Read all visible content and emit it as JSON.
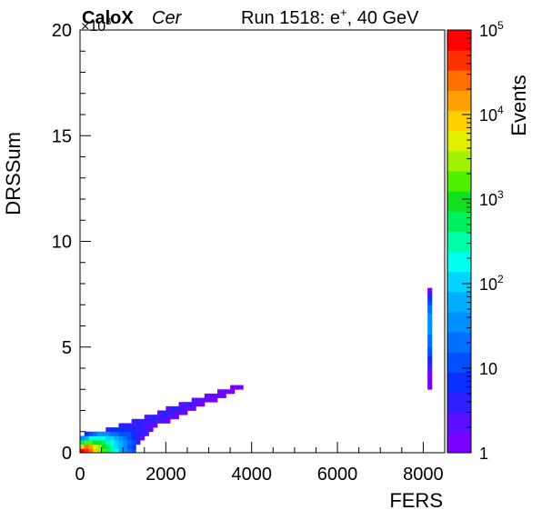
{
  "header": {
    "brand": "CaloX",
    "channel": "Cer",
    "run_label": "Run 1518: e",
    "run_sup": "+",
    "run_energy": ", 40 GeV"
  },
  "chart_data": {
    "type": "heatmap",
    "xlabel": "FERS",
    "ylabel": "DRSSum",
    "y_multiplier_base": "×10",
    "y_multiplier_exp": "3",
    "xlim": [
      0,
      8500
    ],
    "ylim": [
      0,
      20000
    ],
    "x_ticks": [
      {
        "value": 0,
        "label": "0"
      },
      {
        "value": 2000,
        "label": "2000"
      },
      {
        "value": 4000,
        "label": "4000"
      },
      {
        "value": 6000,
        "label": "6000"
      },
      {
        "value": 8000,
        "label": "8000"
      }
    ],
    "y_ticks": [
      {
        "value": 0,
        "label": "0"
      },
      {
        "value": 5000,
        "label": "5"
      },
      {
        "value": 10000,
        "label": "10"
      },
      {
        "value": 15000,
        "label": "15"
      },
      {
        "value": 20000,
        "label": "20"
      }
    ],
    "colorbar": {
      "label": "Events",
      "scale": "log",
      "range": [
        1,
        100000
      ],
      "ticks": [
        {
          "value": 1,
          "base": "1",
          "exp": ""
        },
        {
          "value": 10,
          "base": "10",
          "exp": ""
        },
        {
          "value": 100,
          "base": "10",
          "exp": "2"
        },
        {
          "value": 1000,
          "base": "10",
          "exp": "3"
        },
        {
          "value": 10000,
          "base": "10",
          "exp": "4"
        },
        {
          "value": 100000,
          "base": "10",
          "exp": "5"
        }
      ],
      "palette": [
        "#7b00ff",
        "#5a10ff",
        "#3020ff",
        "#0a30ff",
        "#0050ff",
        "#0070ff",
        "#0090ff",
        "#00b0ff",
        "#00d4ff",
        "#00ffee",
        "#00ffaa",
        "#00f060",
        "#10e020",
        "#50f000",
        "#a0f000",
        "#e0f000",
        "#ffd000",
        "#ffa000",
        "#ff7000",
        "#ff3000",
        "#ff0000"
      ]
    },
    "bins": {
      "x_width": 100,
      "y_width": 200,
      "cells": [
        [
          0,
          0,
          60000
        ],
        [
          100,
          0,
          40000
        ],
        [
          200,
          0,
          20000
        ],
        [
          300,
          0,
          8000
        ],
        [
          400,
          0,
          3000
        ],
        [
          500,
          0,
          1500
        ],
        [
          600,
          0,
          600
        ],
        [
          700,
          0,
          300
        ],
        [
          800,
          0,
          150
        ],
        [
          900,
          0,
          80
        ],
        [
          1000,
          0,
          40
        ],
        [
          1100,
          0,
          20
        ],
        [
          1200,
          0,
          10
        ],
        [
          0,
          200,
          8000
        ],
        [
          100,
          200,
          20000
        ],
        [
          200,
          200,
          15000
        ],
        [
          300,
          200,
          6000
        ],
        [
          400,
          200,
          2500
        ],
        [
          500,
          200,
          1200
        ],
        [
          600,
          200,
          500
        ],
        [
          700,
          200,
          250
        ],
        [
          800,
          200,
          120
        ],
        [
          900,
          200,
          60
        ],
        [
          1000,
          200,
          30
        ],
        [
          1100,
          200,
          12
        ],
        [
          1200,
          200,
          6
        ],
        [
          0,
          400,
          600
        ],
        [
          100,
          400,
          1500
        ],
        [
          200,
          400,
          2000
        ],
        [
          300,
          400,
          1200
        ],
        [
          400,
          400,
          800
        ],
        [
          500,
          400,
          500
        ],
        [
          600,
          400,
          300
        ],
        [
          700,
          400,
          180
        ],
        [
          800,
          400,
          100
        ],
        [
          900,
          400,
          60
        ],
        [
          1000,
          400,
          35
        ],
        [
          1100,
          400,
          18
        ],
        [
          1200,
          400,
          9
        ],
        [
          1300,
          400,
          4
        ],
        [
          0,
          600,
          30
        ],
        [
          100,
          600,
          80
        ],
        [
          200,
          600,
          150
        ],
        [
          300,
          600,
          200
        ],
        [
          400,
          600,
          180
        ],
        [
          500,
          600,
          150
        ],
        [
          600,
          600,
          120
        ],
        [
          700,
          600,
          90
        ],
        [
          800,
          600,
          60
        ],
        [
          900,
          600,
          40
        ],
        [
          1000,
          600,
          25
        ],
        [
          1100,
          600,
          14
        ],
        [
          1200,
          600,
          8
        ],
        [
          1300,
          600,
          4
        ],
        [
          1400,
          600,
          2
        ],
        [
          100,
          800,
          6
        ],
        [
          200,
          800,
          10
        ],
        [
          300,
          800,
          20
        ],
        [
          400,
          800,
          30
        ],
        [
          500,
          800,
          35
        ],
        [
          600,
          800,
          30
        ],
        [
          700,
          800,
          25
        ],
        [
          800,
          800,
          20
        ],
        [
          900,
          800,
          15
        ],
        [
          1000,
          800,
          12
        ],
        [
          1100,
          800,
          10
        ],
        [
          1200,
          800,
          8
        ],
        [
          1300,
          800,
          5
        ],
        [
          1400,
          800,
          3
        ],
        [
          1500,
          800,
          2
        ],
        [
          600,
          1000,
          4
        ],
        [
          700,
          1000,
          6
        ],
        [
          800,
          1000,
          8
        ],
        [
          900,
          1000,
          8
        ],
        [
          1000,
          1000,
          7
        ],
        [
          1100,
          1000,
          6
        ],
        [
          1200,
          1000,
          5
        ],
        [
          1300,
          1000,
          5
        ],
        [
          1400,
          1000,
          4
        ],
        [
          1500,
          1000,
          3
        ],
        [
          1600,
          1000,
          2
        ],
        [
          900,
          1200,
          3
        ],
        [
          1000,
          1200,
          4
        ],
        [
          1100,
          1200,
          5
        ],
        [
          1200,
          1200,
          5
        ],
        [
          1300,
          1200,
          4
        ],
        [
          1400,
          1200,
          3
        ],
        [
          1500,
          1200,
          2
        ],
        [
          1600,
          1200,
          2
        ],
        [
          1700,
          1200,
          1
        ],
        [
          1200,
          1400,
          3
        ],
        [
          1300,
          1400,
          4
        ],
        [
          1400,
          1400,
          4
        ],
        [
          1500,
          1400,
          4
        ],
        [
          1600,
          1400,
          3
        ],
        [
          1700,
          1400,
          3
        ],
        [
          1800,
          1400,
          2
        ],
        [
          1900,
          1400,
          2
        ],
        [
          2000,
          1400,
          1
        ],
        [
          1500,
          1600,
          2
        ],
        [
          1600,
          1600,
          3
        ],
        [
          1700,
          1600,
          3
        ],
        [
          1800,
          1600,
          3
        ],
        [
          1900,
          1600,
          3
        ],
        [
          2000,
          1600,
          2
        ],
        [
          2100,
          1600,
          2
        ],
        [
          2200,
          1600,
          1
        ],
        [
          1800,
          1800,
          2
        ],
        [
          1900,
          1800,
          3
        ],
        [
          2000,
          1800,
          3
        ],
        [
          2100,
          1800,
          3
        ],
        [
          2200,
          1800,
          2
        ],
        [
          2300,
          1800,
          2
        ],
        [
          2400,
          1800,
          1
        ],
        [
          2000,
          2000,
          2
        ],
        [
          2100,
          2000,
          3
        ],
        [
          2200,
          2000,
          3
        ],
        [
          2300,
          2000,
          3
        ],
        [
          2400,
          2000,
          2
        ],
        [
          2500,
          2000,
          2
        ],
        [
          2600,
          2000,
          1
        ],
        [
          2300,
          2200,
          2
        ],
        [
          2400,
          2200,
          2
        ],
        [
          2500,
          2200,
          3
        ],
        [
          2600,
          2200,
          2
        ],
        [
          2700,
          2200,
          2
        ],
        [
          2800,
          2200,
          1
        ],
        [
          2600,
          2400,
          2
        ],
        [
          2700,
          2400,
          2
        ],
        [
          2800,
          2400,
          2
        ],
        [
          2900,
          2400,
          2
        ],
        [
          3000,
          2400,
          1
        ],
        [
          3100,
          2400,
          1
        ],
        [
          2900,
          2600,
          1
        ],
        [
          3000,
          2600,
          2
        ],
        [
          3100,
          2600,
          2
        ],
        [
          3200,
          2600,
          2
        ],
        [
          3300,
          2600,
          1
        ],
        [
          3200,
          2800,
          1
        ],
        [
          3300,
          2800,
          2
        ],
        [
          3400,
          2800,
          1
        ],
        [
          3500,
          2800,
          1
        ],
        [
          3500,
          3000,
          1
        ],
        [
          3600,
          3000,
          1
        ],
        [
          3700,
          3000,
          1
        ],
        [
          8100,
          3000,
          1
        ],
        [
          8100,
          3200,
          1
        ],
        [
          8100,
          3400,
          2
        ],
        [
          8100,
          3600,
          1
        ],
        [
          8100,
          3800,
          2
        ],
        [
          8100,
          4000,
          3
        ],
        [
          8100,
          4200,
          5
        ],
        [
          8100,
          4400,
          8
        ],
        [
          8100,
          4600,
          10
        ],
        [
          8100,
          4800,
          14
        ],
        [
          8100,
          5000,
          18
        ],
        [
          8100,
          5200,
          22
        ],
        [
          8100,
          5400,
          26
        ],
        [
          8100,
          5600,
          30
        ],
        [
          8100,
          5800,
          32
        ],
        [
          8100,
          6000,
          35
        ],
        [
          8100,
          6200,
          35
        ],
        [
          8100,
          6400,
          30
        ],
        [
          8100,
          6600,
          26
        ],
        [
          8100,
          6800,
          22
        ],
        [
          8100,
          7000,
          14
        ],
        [
          8100,
          7200,
          8
        ],
        [
          8100,
          7400,
          3
        ],
        [
          8100,
          7600,
          1
        ]
      ]
    }
  }
}
